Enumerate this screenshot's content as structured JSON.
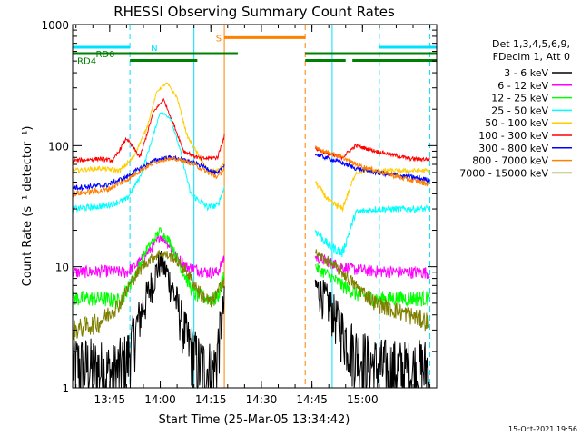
{
  "chart_data": {
    "type": "line",
    "title": "RHESSI Observing Summary Count Rates",
    "xlabel": "Start Time (25-Mar-05 13:34:42)",
    "ylabel": "Count Rate (s⁻¹ detector⁻¹)",
    "y_scale": "log",
    "ylim": [
      1,
      1000
    ],
    "xlim_minutes_after_1334": [
      0,
      108
    ],
    "x_ticks": [
      {
        "t": 11,
        "label": "13:45"
      },
      {
        "t": 26,
        "label": "14:00"
      },
      {
        "t": 41,
        "label": "14:15"
      },
      {
        "t": 56,
        "label": "14:30"
      },
      {
        "t": 71,
        "label": "14:45"
      },
      {
        "t": 86,
        "label": "15:00"
      }
    ],
    "y_ticks": [
      {
        "v": 1,
        "label": "1"
      },
      {
        "v": 10,
        "label": "10"
      },
      {
        "v": 100,
        "label": "100"
      },
      {
        "v": 1000,
        "label": "1000"
      }
    ],
    "legend_header": [
      "Det 1,3,4,5,6,9,",
      "FDecim 1, Att 0"
    ],
    "legend_placement": "right",
    "timestamp": "15-Oct-2021 19:56",
    "state_bars": [
      {
        "label": "N",
        "color": "#00e0ff",
        "value": 650,
        "segments": [
          [
            0,
            17
          ],
          [
            91,
            108
          ]
        ]
      },
      {
        "label": "RD0",
        "color": "#008000",
        "value": 575,
        "segments": [
          [
            0,
            49
          ],
          [
            69,
            108
          ]
        ]
      },
      {
        "label": "RD4",
        "color": "#008000",
        "value": 505,
        "segments": [
          [
            17,
            37
          ],
          [
            69,
            81
          ],
          [
            83,
            108
          ]
        ]
      },
      {
        "label": "S",
        "color": "#ff8000",
        "value": 780,
        "segments": [
          [
            45,
            69
          ]
        ]
      }
    ],
    "vlines": [
      {
        "t": 17,
        "color": "#00e0ff",
        "style": "dashed"
      },
      {
        "t": 36,
        "color": "#00e0ff",
        "style": "solid"
      },
      {
        "t": 45,
        "color": "#ff8000",
        "style": "solid"
      },
      {
        "t": 69,
        "color": "#ff8000",
        "style": "dashed"
      },
      {
        "t": 77,
        "color": "#00e0ff",
        "style": "solid"
      },
      {
        "t": 91,
        "color": "#00e0ff",
        "style": "dashed"
      },
      {
        "t": 106,
        "color": "#00e0ff",
        "style": "dashed"
      }
    ],
    "series": [
      {
        "name": "3 - 6 keV",
        "color": "#000000",
        "segA": [
          [
            0,
            1.6
          ],
          [
            6,
            1.5
          ],
          [
            12,
            1.3
          ],
          [
            16,
            1.7
          ],
          [
            20,
            4
          ],
          [
            24,
            8
          ],
          [
            26,
            11
          ],
          [
            28,
            9
          ],
          [
            31,
            5
          ],
          [
            34,
            2.5
          ],
          [
            38,
            1.5
          ],
          [
            42,
            1.4
          ],
          [
            45,
            5
          ]
        ],
        "segB": [
          [
            72,
            7
          ],
          [
            76,
            5
          ],
          [
            80,
            3
          ],
          [
            84,
            2
          ],
          [
            90,
            1.5
          ],
          [
            100,
            1.4
          ],
          [
            106,
            1.5
          ]
        ]
      },
      {
        "name": "6 - 12 keV",
        "color": "#ff00ff",
        "segA": [
          [
            0,
            9
          ],
          [
            10,
            9.2
          ],
          [
            16,
            9
          ],
          [
            20,
            11
          ],
          [
            24,
            15
          ],
          [
            26,
            18
          ],
          [
            28,
            16
          ],
          [
            31,
            12
          ],
          [
            34,
            10
          ],
          [
            40,
            9
          ],
          [
            43,
            9
          ],
          [
            45,
            12
          ]
        ],
        "segB": [
          [
            72,
            12
          ],
          [
            76,
            11
          ],
          [
            80,
            10
          ],
          [
            84,
            9.5
          ],
          [
            90,
            9.2
          ],
          [
            100,
            9
          ],
          [
            106,
            9
          ]
        ]
      },
      {
        "name": "12 - 25 keV",
        "color": "#00ff00",
        "segA": [
          [
            0,
            5.5
          ],
          [
            8,
            5.5
          ],
          [
            14,
            5.2
          ],
          [
            18,
            8
          ],
          [
            22,
            14
          ],
          [
            26,
            20
          ],
          [
            29,
            16
          ],
          [
            32,
            10
          ],
          [
            36,
            6
          ],
          [
            40,
            5.5
          ],
          [
            43,
            5.5
          ],
          [
            45,
            9
          ]
        ],
        "segB": [
          [
            72,
            10
          ],
          [
            76,
            8.5
          ],
          [
            80,
            7
          ],
          [
            84,
            6
          ],
          [
            90,
            5.5
          ],
          [
            100,
            5.5
          ],
          [
            106,
            5.5
          ]
        ]
      },
      {
        "name": "25 - 50 keV",
        "color": "#00ffff",
        "segA": [
          [
            0,
            30
          ],
          [
            10,
            32
          ],
          [
            16,
            36
          ],
          [
            20,
            55
          ],
          [
            23,
            100
          ],
          [
            26,
            190
          ],
          [
            29,
            170
          ],
          [
            32,
            90
          ],
          [
            35,
            40
          ],
          [
            40,
            31
          ],
          [
            43,
            32
          ],
          [
            45,
            45
          ]
        ],
        "segB": [
          [
            72,
            20
          ],
          [
            76,
            15
          ],
          [
            80,
            13
          ],
          [
            84,
            28
          ],
          [
            90,
            30
          ],
          [
            100,
            30
          ],
          [
            106,
            30
          ]
        ]
      },
      {
        "name": "50 - 100 keV",
        "color": "#ffcc00",
        "segA": [
          [
            0,
            62
          ],
          [
            8,
            65
          ],
          [
            14,
            62
          ],
          [
            18,
            80
          ],
          [
            22,
            140
          ],
          [
            25,
            280
          ],
          [
            28,
            330
          ],
          [
            31,
            250
          ],
          [
            34,
            120
          ],
          [
            40,
            62
          ],
          [
            43,
            62
          ],
          [
            45,
            70
          ]
        ],
        "segB": [
          [
            72,
            50
          ],
          [
            76,
            35
          ],
          [
            80,
            30
          ],
          [
            84,
            60
          ],
          [
            90,
            62
          ],
          [
            100,
            62
          ],
          [
            106,
            62
          ]
        ]
      },
      {
        "name": "100 - 300 keV",
        "color": "#ff0000",
        "segA": [
          [
            0,
            75
          ],
          [
            8,
            78
          ],
          [
            12,
            75
          ],
          [
            16,
            115
          ],
          [
            20,
            80
          ],
          [
            24,
            190
          ],
          [
            27,
            240
          ],
          [
            30,
            150
          ],
          [
            33,
            90
          ],
          [
            38,
            78
          ],
          [
            43,
            80
          ],
          [
            45,
            120
          ]
        ],
        "segB": [
          [
            72,
            95
          ],
          [
            76,
            85
          ],
          [
            80,
            80
          ],
          [
            84,
            100
          ],
          [
            90,
            90
          ],
          [
            100,
            78
          ],
          [
            106,
            77
          ]
        ]
      },
      {
        "name": "300 - 800 keV",
        "color": "#0000ff",
        "segA": [
          [
            0,
            45
          ],
          [
            10,
            47
          ],
          [
            16,
            55
          ],
          [
            20,
            65
          ],
          [
            24,
            75
          ],
          [
            28,
            80
          ],
          [
            32,
            78
          ],
          [
            36,
            72
          ],
          [
            40,
            65
          ],
          [
            43,
            58
          ],
          [
            45,
            70
          ]
        ],
        "segB": [
          [
            72,
            85
          ],
          [
            76,
            78
          ],
          [
            80,
            72
          ],
          [
            84,
            65
          ],
          [
            90,
            60
          ],
          [
            100,
            55
          ],
          [
            106,
            52
          ]
        ]
      },
      {
        "name": "800 - 7000 keV",
        "color": "#ff8000",
        "segA": [
          [
            0,
            40
          ],
          [
            10,
            43
          ],
          [
            16,
            52
          ],
          [
            20,
            62
          ],
          [
            24,
            72
          ],
          [
            28,
            78
          ],
          [
            32,
            76
          ],
          [
            36,
            70
          ],
          [
            40,
            60
          ],
          [
            43,
            55
          ],
          [
            45,
            65
          ]
        ],
        "segB": [
          [
            72,
            95
          ],
          [
            76,
            88
          ],
          [
            80,
            80
          ],
          [
            84,
            70
          ],
          [
            90,
            62
          ],
          [
            100,
            52
          ],
          [
            106,
            48
          ]
        ]
      },
      {
        "name": "7000 - 15000 keV",
        "color": "#808000",
        "segA": [
          [
            0,
            3
          ],
          [
            8,
            3.5
          ],
          [
            14,
            5
          ],
          [
            18,
            8
          ],
          [
            22,
            11
          ],
          [
            26,
            13
          ],
          [
            30,
            12
          ],
          [
            34,
            9
          ],
          [
            38,
            6
          ],
          [
            41,
            5
          ],
          [
            43,
            6
          ],
          [
            45,
            8
          ]
        ],
        "segB": [
          [
            72,
            13
          ],
          [
            76,
            11
          ],
          [
            80,
            9
          ],
          [
            84,
            7
          ],
          [
            90,
            5
          ],
          [
            100,
            4
          ],
          [
            106,
            3.5
          ]
        ]
      }
    ]
  }
}
